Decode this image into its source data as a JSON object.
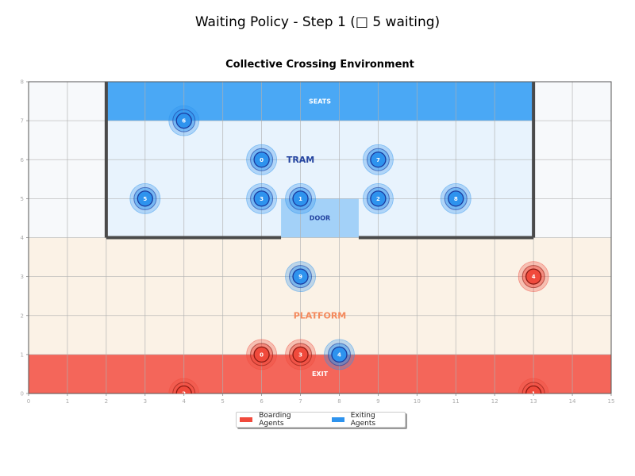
{
  "figure": {
    "suptitle": "Waiting Policy - Step 1 (□ 5 waiting)",
    "title": "Collective Crossing Environment"
  },
  "legend": {
    "items": [
      {
        "label": "Boarding Agents",
        "color": "#f04a3c"
      },
      {
        "label": "Exiting Agents",
        "color": "#2e93ee"
      }
    ]
  },
  "colors": {
    "seats": "#4aa8f5",
    "tram": "#e8f3fd",
    "door": "#a3d1f8",
    "outside": "#f7f9fb",
    "platform": "#fbf2e6",
    "exit": "#f4665a",
    "wall": "#4a4a4a",
    "platform_label": "#f4895c",
    "tram_label": "#2444a0",
    "door_label": "#2444a0",
    "boarding": "#f04a3c",
    "exiting": "#2e93ee"
  },
  "chart_data": {
    "type": "scatter",
    "title": "Collective Crossing Environment",
    "suptitle": "Waiting Policy - Step 1 (□ 5 waiting)",
    "xlabel": "",
    "ylabel": "",
    "xlim": [
      0,
      15
    ],
    "ylim": [
      0,
      8
    ],
    "xticks": [
      0,
      1,
      2,
      3,
      4,
      5,
      6,
      7,
      8,
      9,
      10,
      11,
      12,
      13,
      14,
      15
    ],
    "yticks": [
      0,
      1,
      2,
      3,
      4,
      5,
      6,
      7,
      8
    ],
    "grid": true,
    "legend_position": "lower center (below axes)",
    "regions": [
      {
        "name": "EXIT",
        "x": [
          0,
          15
        ],
        "y": [
          0,
          1
        ]
      },
      {
        "name": "PLATFORM",
        "x": [
          0,
          15
        ],
        "y": [
          1,
          4
        ]
      },
      {
        "name": "TRAM",
        "x": [
          2,
          13
        ],
        "y": [
          4,
          8
        ]
      },
      {
        "name": "SEATS",
        "x": [
          2,
          13
        ],
        "y": [
          7,
          8
        ]
      },
      {
        "name": "DOOR",
        "x": [
          6.5,
          8.5
        ],
        "y": [
          4,
          5
        ]
      }
    ],
    "annotations": [
      {
        "text": "SEATS",
        "x": 7.5,
        "y": 7.5
      },
      {
        "text": "TRAM",
        "x": 7,
        "y": 6
      },
      {
        "text": "DOOR",
        "x": 7.5,
        "y": 4.5
      },
      {
        "text": "PLATFORM",
        "x": 7.5,
        "y": 2
      },
      {
        "text": "EXIT",
        "x": 7.5,
        "y": 0.5
      }
    ],
    "series": [
      {
        "name": "Boarding Agents",
        "color": "#f04a3c",
        "points": [
          {
            "id": 0,
            "x": 6,
            "y": 1
          },
          {
            "id": 1,
            "x": 13,
            "y": 0
          },
          {
            "id": 2,
            "x": 4,
            "y": 0
          },
          {
            "id": 3,
            "x": 7,
            "y": 1
          },
          {
            "id": 4,
            "x": 13,
            "y": 3
          }
        ]
      },
      {
        "name": "Exiting Agents",
        "color": "#2e93ee",
        "points": [
          {
            "id": 0,
            "x": 6,
            "y": 6
          },
          {
            "id": 1,
            "x": 7,
            "y": 5
          },
          {
            "id": 2,
            "x": 9,
            "y": 5
          },
          {
            "id": 3,
            "x": 6,
            "y": 5
          },
          {
            "id": 4,
            "x": 8,
            "y": 1
          },
          {
            "id": 5,
            "x": 3,
            "y": 5
          },
          {
            "id": 6,
            "x": 4,
            "y": 7
          },
          {
            "id": 7,
            "x": 9,
            "y": 6
          },
          {
            "id": 8,
            "x": 11,
            "y": 5
          },
          {
            "id": 9,
            "x": 7,
            "y": 3
          }
        ]
      }
    ]
  }
}
